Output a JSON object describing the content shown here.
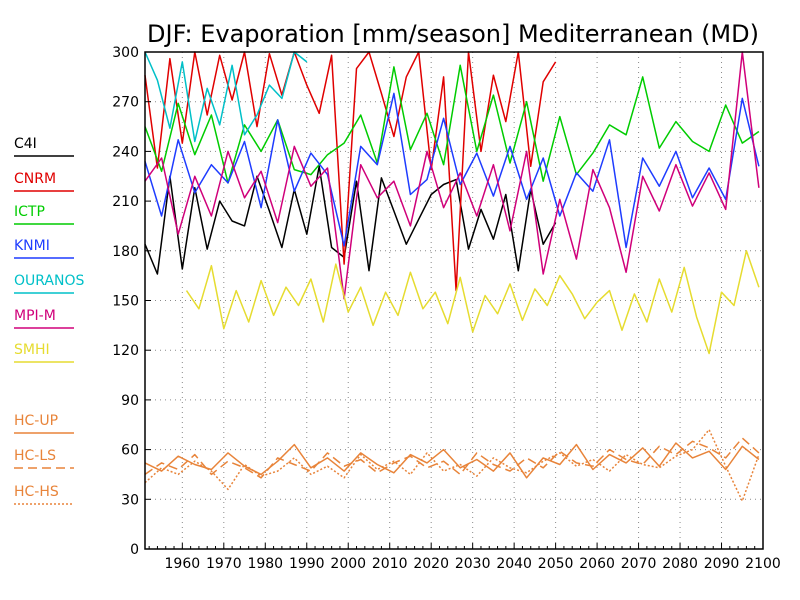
{
  "chart_data": {
    "type": "line",
    "title": "DJF: Evaporation [mm/season] Mediterranean (MD)",
    "xlabel": "",
    "ylabel": "",
    "xlim": [
      1951,
      2100
    ],
    "ylim": [
      0,
      300
    ],
    "x_ticks": [
      1960,
      1970,
      1980,
      1990,
      2000,
      2010,
      2020,
      2030,
      2040,
      2050,
      2060,
      2070,
      2080,
      2090,
      2100
    ],
    "y_ticks": [
      0,
      30,
      60,
      90,
      120,
      150,
      180,
      210,
      240,
      270,
      300
    ],
    "grid": true,
    "legend_position": "left",
    "series": [
      {
        "name": "C4I",
        "color": "#000000",
        "dash": "solid",
        "x": [
          1951,
          1954,
          1957,
          1960,
          1963,
          1966,
          1969,
          1972,
          1975,
          1978,
          1981,
          1984,
          1987,
          1990,
          1993,
          1996,
          1999,
          2002,
          2005,
          2008,
          2011,
          2014,
          2017,
          2020,
          2023,
          2026,
          2029,
          2032,
          2035,
          2038,
          2041,
          2044,
          2047,
          2050
        ],
        "y": [
          184,
          166,
          225,
          169,
          218,
          181,
          210,
          198,
          195,
          225,
          204,
          182,
          217,
          190,
          231,
          182,
          176,
          222,
          168,
          224,
          204,
          184,
          199,
          214,
          220,
          223,
          181,
          205,
          187,
          214,
          168,
          217,
          184,
          197
        ]
      },
      {
        "name": "CNRM",
        "color": "#e00000",
        "dash": "solid",
        "x": [
          1951,
          1954,
          1957,
          1960,
          1963,
          1966,
          1969,
          1972,
          1975,
          1978,
          1981,
          1984,
          1987,
          1990,
          1993,
          1996,
          1999,
          2002,
          2005,
          2008,
          2011,
          2014,
          2017,
          2020,
          2023,
          2026,
          2029,
          2032,
          2035,
          2038,
          2041,
          2044,
          2047,
          2050
        ],
        "y": [
          286,
          230,
          296,
          245,
          300,
          262,
          298,
          271,
          300,
          255,
          299,
          274,
          300,
          280,
          263,
          298,
          172,
          290,
          300,
          275,
          249,
          285,
          300,
          229,
          285,
          156,
          300,
          240,
          286,
          258,
          300,
          231,
          282,
          294
        ]
      },
      {
        "name": "ICTP",
        "color": "#00cc00",
        "dash": "solid",
        "x": [
          1951,
          1955,
          1959,
          1963,
          1967,
          1971,
          1975,
          1979,
          1983,
          1987,
          1991,
          1995,
          1999,
          2003,
          2007,
          2011,
          2015,
          2019,
          2023,
          2027,
          2031,
          2035,
          2039,
          2043,
          2047,
          2051,
          2055,
          2059,
          2063,
          2067,
          2071,
          2075,
          2079,
          2083,
          2087,
          2091,
          2095,
          2099
        ],
        "y": [
          255,
          228,
          269,
          238,
          262,
          221,
          256,
          240,
          259,
          229,
          226,
          238,
          245,
          262,
          233,
          291,
          241,
          263,
          232,
          292,
          240,
          274,
          233,
          270,
          222,
          261,
          226,
          239,
          256,
          250,
          285,
          242,
          258,
          246,
          240,
          268,
          245,
          252
        ]
      },
      {
        "name": "KNMI",
        "color": "#1e3cff",
        "dash": "solid",
        "x": [
          1951,
          1955,
          1959,
          1963,
          1967,
          1971,
          1975,
          1979,
          1983,
          1987,
          1991,
          1995,
          1999,
          2003,
          2007,
          2011,
          2015,
          2019,
          2023,
          2027,
          2031,
          2035,
          2039,
          2043,
          2047,
          2051,
          2055,
          2059,
          2063,
          2067,
          2071,
          2075,
          2079,
          2083,
          2087,
          2091,
          2095,
          2099
        ],
        "y": [
          234,
          201,
          247,
          215,
          232,
          221,
          246,
          206,
          259,
          216,
          239,
          226,
          183,
          243,
          232,
          275,
          214,
          223,
          260,
          220,
          239,
          213,
          243,
          211,
          236,
          201,
          227,
          216,
          247,
          182,
          236,
          219,
          240,
          212,
          230,
          211,
          272,
          231
        ]
      },
      {
        "name": "OURANOS",
        "color": "#00c0c8",
        "dash": "solid",
        "x": [
          1951,
          1954,
          1957,
          1960,
          1963,
          1966,
          1969,
          1972,
          1975,
          1978,
          1981,
          1984,
          1987,
          1990
        ],
        "y": [
          300,
          283,
          254,
          294,
          246,
          278,
          256,
          292,
          250,
          262,
          280,
          272,
          300,
          294
        ]
      },
      {
        "name": "MPI-M",
        "color": "#d0007a",
        "dash": "solid",
        "x": [
          1951,
          1955,
          1959,
          1963,
          1967,
          1971,
          1975,
          1979,
          1983,
          1987,
          1991,
          1995,
          1999,
          2003,
          2007,
          2011,
          2015,
          2019,
          2023,
          2027,
          2031,
          2035,
          2039,
          2043,
          2047,
          2051,
          2055,
          2059,
          2063,
          2067,
          2071,
          2075,
          2079,
          2083,
          2087,
          2091,
          2095,
          2099
        ],
        "y": [
          222,
          236,
          190,
          225,
          201,
          240,
          212,
          228,
          197,
          243,
          219,
          230,
          151,
          232,
          212,
          222,
          195,
          240,
          206,
          227,
          201,
          232,
          192,
          240,
          166,
          211,
          175,
          229,
          206,
          167,
          225,
          204,
          232,
          207,
          227,
          205,
          300,
          218
        ]
      },
      {
        "name": "SMHI",
        "color": "#e6dc30",
        "dash": "solid",
        "x": [
          1961,
          1964,
          1967,
          1970,
          1973,
          1976,
          1979,
          1982,
          1985,
          1988,
          1991,
          1994,
          1997,
          2000,
          2003,
          2006,
          2009,
          2012,
          2015,
          2018,
          2021,
          2024,
          2027,
          2030,
          2033,
          2036,
          2039,
          2042,
          2045,
          2048,
          2051,
          2054,
          2057,
          2060,
          2063,
          2066,
          2069,
          2072,
          2075,
          2078,
          2081,
          2084,
          2087,
          2090,
          2093,
          2096,
          2099
        ],
        "y": [
          156,
          145,
          171,
          133,
          156,
          137,
          162,
          141,
          158,
          147,
          163,
          137,
          172,
          143,
          158,
          135,
          155,
          141,
          167,
          145,
          155,
          136,
          164,
          131,
          153,
          142,
          160,
          138,
          157,
          147,
          165,
          154,
          139,
          149,
          156,
          132,
          154,
          137,
          163,
          143,
          170,
          140,
          118,
          155,
          147,
          180,
          158
        ]
      },
      {
        "name": "HC-UP",
        "color": "#e8843a",
        "dash": "solid",
        "x": [
          1951,
          1955,
          1959,
          1963,
          1967,
          1971,
          1975,
          1979,
          1983,
          1987,
          1991,
          1995,
          1999,
          2003,
          2007,
          2011,
          2015,
          2019,
          2023,
          2027,
          2031,
          2035,
          2039,
          2043,
          2047,
          2051,
          2055,
          2059,
          2063,
          2067,
          2071,
          2075,
          2079,
          2083,
          2087,
          2091,
          2095,
          2099
        ],
        "y": [
          52,
          47,
          56,
          51,
          48,
          58,
          50,
          45,
          53,
          63,
          49,
          55,
          47,
          58,
          51,
          46,
          57,
          52,
          60,
          49,
          54,
          47,
          58,
          43,
          55,
          51,
          63,
          48,
          57,
          52,
          61,
          50,
          64,
          55,
          59,
          48,
          62,
          54
        ]
      },
      {
        "name": "HC-LS",
        "color": "#e8843a",
        "dash": "dash",
        "x": [
          1951,
          1955,
          1959,
          1963,
          1967,
          1971,
          1975,
          1979,
          1983,
          1987,
          1991,
          1995,
          1999,
          2003,
          2007,
          2011,
          2015,
          2019,
          2023,
          2027,
          2031,
          2035,
          2039,
          2043,
          2047,
          2051,
          2055,
          2059,
          2063,
          2067,
          2071,
          2075,
          2079,
          2083,
          2087,
          2091,
          2095,
          2099
        ],
        "y": [
          45,
          52,
          48,
          57,
          45,
          53,
          49,
          43,
          55,
          51,
          47,
          58,
          50,
          54,
          46,
          52,
          56,
          49,
          53,
          45,
          58,
          51,
          47,
          55,
          49,
          59,
          52,
          50,
          60,
          54,
          51,
          62,
          57,
          65,
          61,
          55,
          67,
          58
        ]
      },
      {
        "name": "HC-HS",
        "color": "#e8843a",
        "dash": "dot",
        "x": [
          1951,
          1955,
          1959,
          1963,
          1967,
          1971,
          1975,
          1979,
          1983,
          1987,
          1991,
          1995,
          1999,
          2003,
          2007,
          2011,
          2015,
          2019,
          2023,
          2027,
          2031,
          2035,
          2039,
          2043,
          2047,
          2051,
          2055,
          2059,
          2063,
          2067,
          2071,
          2075,
          2079,
          2083,
          2087,
          2091,
          2095,
          2099
        ],
        "y": [
          40,
          49,
          45,
          53,
          47,
          36,
          51,
          44,
          47,
          55,
          45,
          50,
          43,
          57,
          48,
          53,
          45,
          58,
          47,
          51,
          44,
          55,
          49,
          46,
          53,
          58,
          50,
          54,
          47,
          57,
          51,
          49,
          56,
          60,
          72,
          50,
          29,
          57
        ]
      }
    ]
  }
}
